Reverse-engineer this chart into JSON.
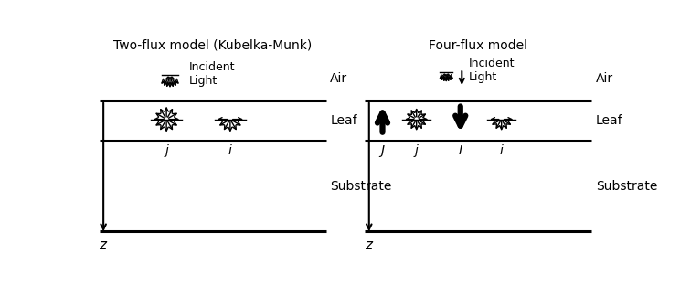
{
  "title_left": "Two-flux model (Kubelka-Munk)",
  "title_right": "Four-flux model",
  "bg_color": "#ffffff",
  "label_air_left": "Air",
  "label_leaf_left": "Leaf",
  "label_substrate_left": "Substrate",
  "label_air_right": "Air",
  "label_leaf_right": "Leaf",
  "label_substrate_right": "Substrate",
  "label_z": "z",
  "label_incident": "Incident\nLight",
  "flux_labels_left": [
    "j",
    "i"
  ],
  "flux_labels_right": [
    "J",
    "j",
    "I",
    "i"
  ]
}
